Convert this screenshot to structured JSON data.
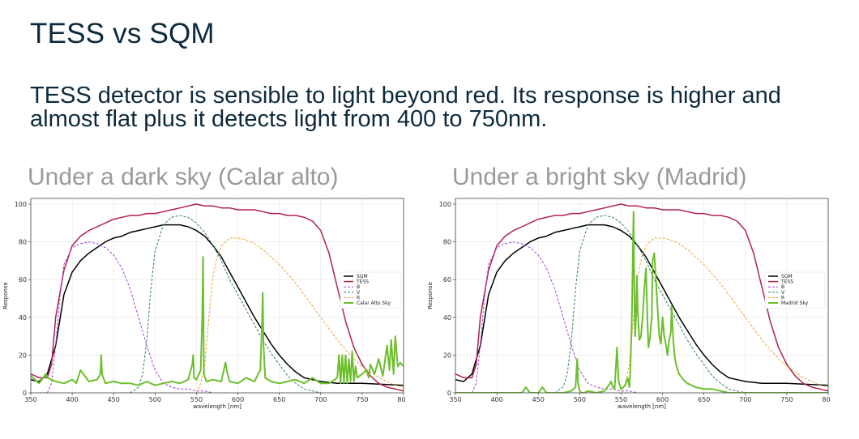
{
  "slide": {
    "title": "TESS vs SQM",
    "subtitle": "TESS detector is sensible to light beyond red. Its response is higher and almost flat plus it detects light from 400 to 750nm."
  },
  "colors": {
    "SQM": "#000000",
    "TESS": "#b2204f",
    "B": "#a23ee0",
    "V": "#2f7f5f",
    "R": "#f0a030",
    "Sky": "#6cbf2c"
  },
  "chart_data": [
    {
      "type": "line",
      "title": "Under a dark sky (Calar alto)",
      "xlabel": "wavelength [nm]",
      "ylabel": "Response",
      "xlim": [
        350,
        800
      ],
      "ylim": [
        0,
        103
      ],
      "xticks": [
        350,
        400,
        450,
        500,
        550,
        600,
        650,
        700,
        750,
        800
      ],
      "yticks": [
        0,
        20,
        40,
        60,
        80,
        100
      ],
      "grid": true,
      "legend": "center-right",
      "series": [
        {
          "name": "SQM",
          "style": "solid",
          "x": [
            350,
            360,
            370,
            380,
            390,
            400,
            410,
            420,
            430,
            440,
            450,
            460,
            470,
            480,
            490,
            500,
            510,
            520,
            530,
            540,
            550,
            560,
            570,
            580,
            590,
            600,
            610,
            620,
            630,
            640,
            650,
            660,
            670,
            680,
            690,
            700,
            720,
            750,
            800
          ],
          "y": [
            7,
            6,
            10,
            25,
            52,
            64,
            70,
            74,
            77,
            80,
            82,
            83,
            85,
            86,
            87,
            88,
            89,
            89,
            89,
            88,
            86,
            83,
            78,
            72,
            64,
            56,
            48,
            40,
            33,
            26,
            20,
            15,
            11,
            8,
            7,
            6,
            5,
            5,
            4
          ]
        },
        {
          "name": "TESS",
          "style": "solid",
          "x": [
            350,
            360,
            370,
            375,
            380,
            390,
            400,
            410,
            420,
            430,
            440,
            450,
            460,
            470,
            480,
            490,
            500,
            510,
            520,
            530,
            540,
            550,
            560,
            570,
            580,
            590,
            600,
            610,
            620,
            630,
            640,
            650,
            660,
            670,
            680,
            690,
            700,
            710,
            720,
            730,
            740,
            750,
            760,
            770,
            780,
            790,
            800
          ],
          "y": [
            10,
            8,
            8,
            15,
            40,
            65,
            78,
            83,
            86,
            88,
            90,
            92,
            93,
            94,
            94,
            95,
            95,
            96,
            97,
            98,
            99,
            100,
            99,
            99,
            98,
            98,
            97,
            97,
            97,
            96,
            95,
            95,
            94,
            94,
            93,
            91,
            86,
            74,
            56,
            38,
            24,
            15,
            9,
            5,
            3,
            2,
            1
          ]
        },
        {
          "name": "B",
          "style": "dashed",
          "x": [
            360,
            370,
            375,
            380,
            385,
            390,
            400,
            410,
            420,
            430,
            440,
            450,
            460,
            470,
            480,
            490,
            500,
            510,
            520,
            530,
            540,
            550,
            560,
            570
          ],
          "y": [
            0,
            0,
            5,
            25,
            50,
            68,
            77,
            79,
            80,
            79,
            77,
            73,
            66,
            55,
            40,
            25,
            12,
            5,
            3,
            2,
            2,
            1,
            1,
            0
          ]
        },
        {
          "name": "V",
          "style": "dashed",
          "x": [
            460,
            470,
            480,
            485,
            490,
            495,
            500,
            510,
            520,
            530,
            540,
            550,
            560,
            570,
            580,
            590,
            600,
            610,
            620,
            630,
            640,
            650,
            660,
            670,
            680,
            690,
            700
          ],
          "y": [
            0,
            0,
            3,
            10,
            28,
            55,
            75,
            89,
            93,
            94,
            93,
            90,
            85,
            78,
            70,
            60,
            52,
            44,
            36,
            28,
            21,
            15,
            9,
            5,
            2,
            1,
            0
          ]
        },
        {
          "name": "R",
          "style": "dashed",
          "x": [
            540,
            550,
            555,
            560,
            565,
            570,
            575,
            580,
            590,
            600,
            610,
            620,
            630,
            640,
            650,
            660,
            670,
            680,
            690,
            700,
            710,
            720,
            730,
            740,
            750,
            760,
            770,
            780,
            790,
            800
          ],
          "y": [
            0,
            0,
            5,
            15,
            40,
            62,
            72,
            78,
            82,
            82,
            81,
            79,
            76,
            72,
            68,
            63,
            58,
            52,
            46,
            40,
            34,
            28,
            23,
            18,
            14,
            11,
            8,
            6,
            4,
            3
          ]
        },
        {
          "name": "Calar Alto Sky",
          "style": "solid-thick",
          "x": [
            350,
            360,
            365,
            368,
            370,
            375,
            380,
            390,
            400,
            405,
            410,
            420,
            430,
            434,
            435,
            436,
            440,
            450,
            460,
            470,
            480,
            490,
            500,
            510,
            520,
            530,
            540,
            545,
            546,
            547,
            550,
            555,
            557,
            558,
            559,
            562,
            570,
            580,
            585,
            587,
            590,
            600,
            610,
            620,
            627,
            629,
            630,
            631,
            633,
            640,
            650,
            660,
            670,
            680,
            690,
            700,
            710,
            720,
            722,
            724,
            726,
            728,
            730,
            732,
            734,
            736,
            738,
            740,
            742,
            744,
            750,
            755,
            758,
            760,
            765,
            770,
            775,
            780,
            783,
            785,
            788,
            790,
            793,
            796,
            800
          ],
          "y": [
            9,
            5,
            8,
            10,
            8,
            7,
            6,
            5,
            7,
            5,
            12,
            6,
            7,
            10,
            20,
            10,
            5,
            6,
            5,
            5,
            4,
            6,
            4,
            5,
            6,
            5,
            7,
            15,
            20,
            8,
            7,
            12,
            40,
            72,
            10,
            6,
            7,
            6,
            16,
            11,
            6,
            5,
            8,
            6,
            12,
            35,
            53,
            25,
            8,
            6,
            5,
            6,
            7,
            5,
            8,
            5,
            5,
            8,
            20,
            5,
            20,
            5,
            20,
            5,
            18,
            6,
            22,
            6,
            14,
            8,
            10,
            12,
            8,
            15,
            10,
            18,
            9,
            25,
            12,
            28,
            10,
            30,
            14,
            16,
            14
          ]
        }
      ]
    },
    {
      "type": "line",
      "title": "Under a bright sky (Madrid)",
      "xlabel": "wavelength [nm]",
      "ylabel": "Response",
      "xlim": [
        350,
        800
      ],
      "ylim": [
        0,
        103
      ],
      "xticks": [
        350,
        400,
        450,
        500,
        550,
        600,
        650,
        700,
        750,
        800
      ],
      "yticks": [
        0,
        20,
        40,
        60,
        80,
        100
      ],
      "grid": true,
      "legend": "center-right",
      "series": [
        {
          "name": "SQM",
          "style": "solid",
          "x": [
            350,
            360,
            370,
            380,
            390,
            400,
            410,
            420,
            430,
            440,
            450,
            460,
            470,
            480,
            490,
            500,
            510,
            520,
            530,
            540,
            550,
            560,
            570,
            580,
            590,
            600,
            610,
            620,
            630,
            640,
            650,
            660,
            670,
            680,
            690,
            700,
            720,
            750,
            800
          ],
          "y": [
            7,
            6,
            10,
            25,
            52,
            64,
            70,
            74,
            77,
            80,
            82,
            83,
            85,
            86,
            87,
            88,
            89,
            89,
            89,
            88,
            86,
            83,
            78,
            72,
            64,
            56,
            48,
            40,
            33,
            26,
            20,
            15,
            11,
            8,
            7,
            6,
            5,
            5,
            4
          ]
        },
        {
          "name": "TESS",
          "style": "solid",
          "x": [
            350,
            360,
            370,
            375,
            380,
            390,
            400,
            410,
            420,
            430,
            440,
            450,
            460,
            470,
            480,
            490,
            500,
            510,
            520,
            530,
            540,
            550,
            560,
            570,
            580,
            590,
            600,
            610,
            620,
            630,
            640,
            650,
            660,
            670,
            680,
            690,
            700,
            710,
            720,
            730,
            740,
            750,
            760,
            770,
            780,
            790,
            800
          ],
          "y": [
            10,
            8,
            8,
            15,
            40,
            65,
            78,
            83,
            86,
            88,
            90,
            92,
            93,
            94,
            94,
            95,
            95,
            96,
            97,
            98,
            99,
            100,
            99,
            99,
            98,
            98,
            97,
            97,
            97,
            96,
            95,
            95,
            94,
            94,
            93,
            91,
            86,
            74,
            56,
            38,
            24,
            15,
            9,
            5,
            3,
            2,
            1
          ]
        },
        {
          "name": "B",
          "style": "dashed",
          "x": [
            360,
            370,
            375,
            380,
            385,
            390,
            400,
            410,
            420,
            430,
            440,
            450,
            460,
            470,
            480,
            490,
            500,
            510,
            520,
            530,
            540,
            550,
            560,
            570
          ],
          "y": [
            0,
            0,
            5,
            25,
            50,
            68,
            77,
            79,
            80,
            79,
            77,
            73,
            66,
            55,
            40,
            25,
            12,
            5,
            3,
            2,
            2,
            1,
            1,
            0
          ]
        },
        {
          "name": "V",
          "style": "dashed",
          "x": [
            460,
            470,
            480,
            485,
            490,
            495,
            500,
            510,
            520,
            530,
            540,
            550,
            560,
            570,
            580,
            590,
            600,
            610,
            620,
            630,
            640,
            650,
            660,
            670,
            680,
            690,
            700
          ],
          "y": [
            0,
            0,
            3,
            10,
            28,
            55,
            75,
            89,
            93,
            94,
            93,
            90,
            85,
            78,
            70,
            60,
            52,
            44,
            36,
            28,
            21,
            15,
            9,
            5,
            2,
            1,
            0
          ]
        },
        {
          "name": "R",
          "style": "dashed",
          "x": [
            540,
            550,
            555,
            560,
            565,
            570,
            575,
            580,
            590,
            600,
            610,
            620,
            630,
            640,
            650,
            660,
            670,
            680,
            690,
            700,
            710,
            720,
            730,
            740,
            750,
            760,
            770,
            780,
            790,
            800
          ],
          "y": [
            0,
            0,
            5,
            15,
            40,
            62,
            72,
            78,
            82,
            82,
            81,
            79,
            76,
            72,
            68,
            63,
            58,
            52,
            46,
            40,
            34,
            28,
            23,
            18,
            14,
            11,
            8,
            6,
            4,
            3
          ]
        },
        {
          "name": "Madrid Sky",
          "style": "solid-thick",
          "x": [
            350,
            400,
            430,
            432,
            435,
            440,
            450,
            452,
            455,
            460,
            470,
            480,
            490,
            495,
            497,
            498,
            500,
            502,
            505,
            510,
            520,
            530,
            535,
            538,
            540,
            542,
            543,
            545,
            547,
            550,
            555,
            558,
            560,
            561,
            563,
            565,
            566,
            567,
            568,
            569,
            570,
            572,
            574,
            576,
            578,
            580,
            582,
            583,
            585,
            587,
            588,
            590,
            592,
            594,
            596,
            598,
            600,
            602,
            604,
            606,
            608,
            610,
            611,
            613,
            615,
            617,
            620,
            625,
            630,
            640,
            650,
            660,
            670,
            680,
            690,
            700,
            750,
            800
          ],
          "y": [
            0,
            0,
            0,
            1,
            3,
            0,
            0,
            1,
            3,
            0,
            0,
            0,
            1,
            3,
            18,
            5,
            1,
            0,
            0,
            1,
            0,
            1,
            4,
            6,
            3,
            2,
            8,
            24,
            6,
            2,
            4,
            8,
            3,
            10,
            40,
            96,
            50,
            30,
            40,
            62,
            44,
            28,
            30,
            40,
            55,
            66,
            35,
            24,
            30,
            40,
            70,
            74,
            60,
            45,
            30,
            26,
            40,
            30,
            26,
            20,
            28,
            32,
            46,
            28,
            18,
            14,
            10,
            7,
            5,
            3,
            2,
            2,
            1,
            0,
            0,
            0,
            0,
            0
          ]
        }
      ]
    }
  ]
}
